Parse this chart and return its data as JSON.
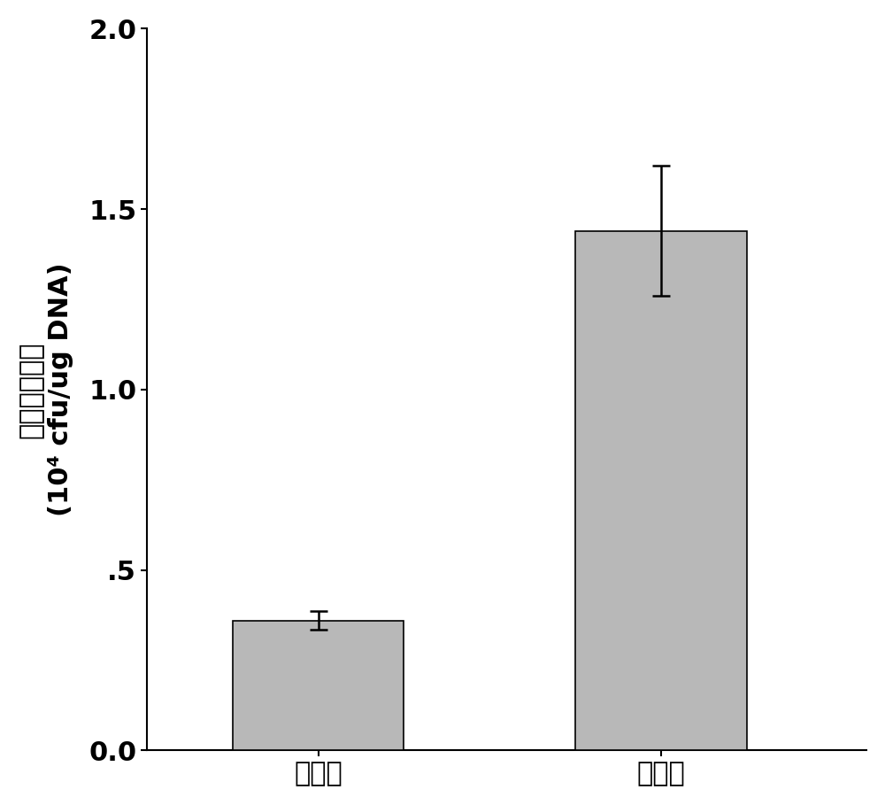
{
  "categories": [
    "优化前",
    "优化后"
  ],
  "values": [
    0.36,
    1.44
  ],
  "errors": [
    0.025,
    0.18
  ],
  "bar_color": "#b8b8b8",
  "bar_edge_color": "#000000",
  "bar_width": 0.5,
  "bar_positions": [
    1,
    2
  ],
  "ylim": [
    0.0,
    2.0
  ],
  "yticks": [
    0.0,
    0.5,
    1.0,
    1.5,
    2.0
  ],
  "yticklabels": [
    "0.0",
    ".5",
    "1.0",
    "1.5",
    "2.0"
  ],
  "ylabel_line1": "最高转化效率",
  "ylabel_line2": "(10⁴ cfu/ug DNA)",
  "ylabel_fontsize": 22,
  "tick_fontsize": 22,
  "xlabel_fontsize": 22,
  "error_capsize": 7,
  "error_linewidth": 1.8,
  "background_color": "#ffffff",
  "spine_color": "#000000",
  "xlim": [
    0.5,
    2.6
  ]
}
